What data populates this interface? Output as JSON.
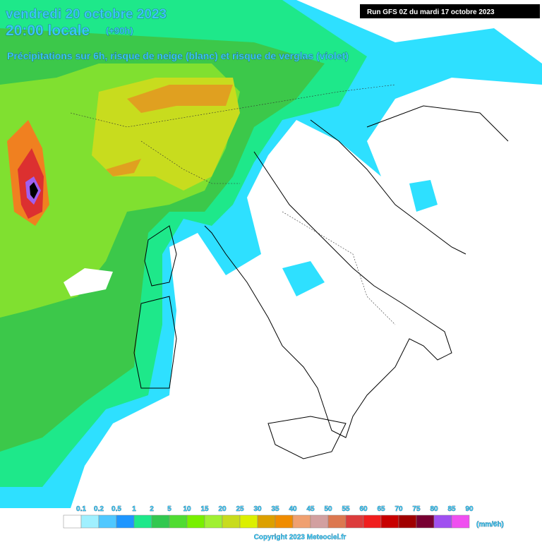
{
  "header": {
    "date": "vendredi 20 octobre 2023",
    "time": "20:00 locale",
    "offset": "(+90h)",
    "subtitle": "Précipitations sur 6h, risque de neige (blanc) et risque de verglas (violet)",
    "run": "Run GFS 0Z du mardi 17 octobre 2023"
  },
  "legend": {
    "unit": "(mm/6h)",
    "items": [
      {
        "label": "0.1",
        "color": "#ffffff"
      },
      {
        "label": "0.2",
        "color": "#a0f0ff"
      },
      {
        "label": "0.5",
        "color": "#50c8ff"
      },
      {
        "label": "1",
        "color": "#1e96ff"
      },
      {
        "label": "2",
        "color": "#1ee88a"
      },
      {
        "label": "5",
        "color": "#32c850"
      },
      {
        "label": "10",
        "color": "#50dc32"
      },
      {
        "label": "15",
        "color": "#78f000"
      },
      {
        "label": "20",
        "color": "#a0f032"
      },
      {
        "label": "25",
        "color": "#c8dc1e"
      },
      {
        "label": "30",
        "color": "#dcf000"
      },
      {
        "label": "35",
        "color": "#dca000"
      },
      {
        "label": "40",
        "color": "#f08c00"
      },
      {
        "label": "45",
        "color": "#f0a070"
      },
      {
        "label": "50",
        "color": "#d2a0a0"
      },
      {
        "label": "55",
        "color": "#dc7850"
      },
      {
        "label": "60",
        "color": "#dc3c3c"
      },
      {
        "label": "65",
        "color": "#f01e1e"
      },
      {
        "label": "70",
        "color": "#c80000"
      },
      {
        "label": "75",
        "color": "#a00000"
      },
      {
        "label": "80",
        "color": "#780032"
      },
      {
        "label": "85",
        "color": "#a050f0"
      },
      {
        "label": "90",
        "color": "#f050f0"
      }
    ]
  },
  "footer": {
    "copyright": "Copyright 2023 Meteociel.fr"
  }
}
